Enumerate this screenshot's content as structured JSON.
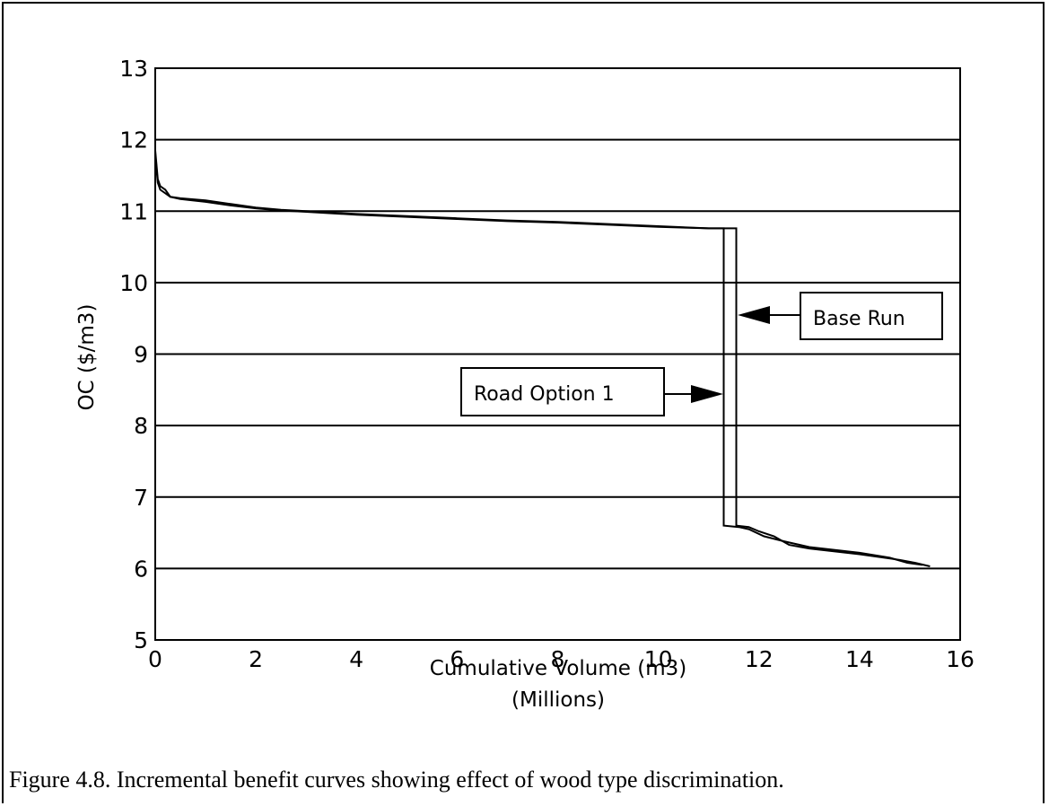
{
  "chart_data": {
    "type": "line",
    "xlabel": "Cumulative Volume (m3)",
    "xlabel_sub": "(Millions)",
    "ylabel": "OC ($/m3)",
    "xlim": [
      0,
      16
    ],
    "ylim": [
      5,
      13
    ],
    "x_ticks": [
      0,
      2,
      4,
      6,
      8,
      10,
      12,
      14,
      16
    ],
    "y_ticks": [
      5,
      6,
      7,
      8,
      9,
      10,
      11,
      12,
      13
    ],
    "grid": "horizontal",
    "series": [
      {
        "name": "Base Run",
        "x": [
          0.0,
          0.05,
          0.1,
          0.2,
          0.3,
          0.5,
          1.0,
          1.5,
          2.0,
          2.5,
          3.0,
          4.0,
          5.0,
          6.0,
          7.0,
          8.0,
          9.0,
          10.0,
          11.0,
          11.55,
          11.55,
          11.8,
          12.0,
          12.3,
          12.6,
          13.0,
          14.0,
          14.8,
          15.1,
          15.4
        ],
        "y": [
          11.85,
          11.45,
          11.35,
          11.3,
          11.2,
          11.18,
          11.15,
          11.1,
          11.05,
          11.02,
          11.0,
          10.96,
          10.93,
          10.9,
          10.87,
          10.85,
          10.82,
          10.79,
          10.76,
          10.76,
          6.6,
          6.58,
          6.52,
          6.45,
          6.33,
          6.28,
          6.2,
          6.12,
          6.08,
          6.03
        ]
      },
      {
        "name": "Road Option 1",
        "x": [
          0.0,
          0.05,
          0.1,
          0.2,
          0.3,
          0.5,
          1.0,
          1.5,
          2.0,
          2.5,
          3.0,
          4.0,
          5.0,
          6.0,
          7.0,
          8.0,
          9.0,
          10.0,
          11.0,
          11.3,
          11.3,
          11.6,
          11.8,
          12.1,
          12.5,
          13.0,
          14.0,
          14.6,
          14.95,
          15.25
        ],
        "y": [
          11.8,
          11.4,
          11.3,
          11.25,
          11.2,
          11.17,
          11.13,
          11.08,
          11.04,
          11.01,
          10.99,
          10.95,
          10.92,
          10.89,
          10.86,
          10.84,
          10.81,
          10.78,
          10.76,
          10.76,
          6.6,
          6.58,
          6.55,
          6.45,
          6.38,
          6.3,
          6.22,
          6.15,
          6.08,
          6.05
        ]
      }
    ],
    "annotations": [
      {
        "text": "Base Run",
        "arrow_to": [
          11.55,
          9.55
        ]
      },
      {
        "text": "Road Option 1",
        "arrow_to": [
          11.3,
          8.45
        ]
      }
    ]
  },
  "caption": "Figure 4.8.  Incremental benefit curves showing effect of wood type discrimination."
}
